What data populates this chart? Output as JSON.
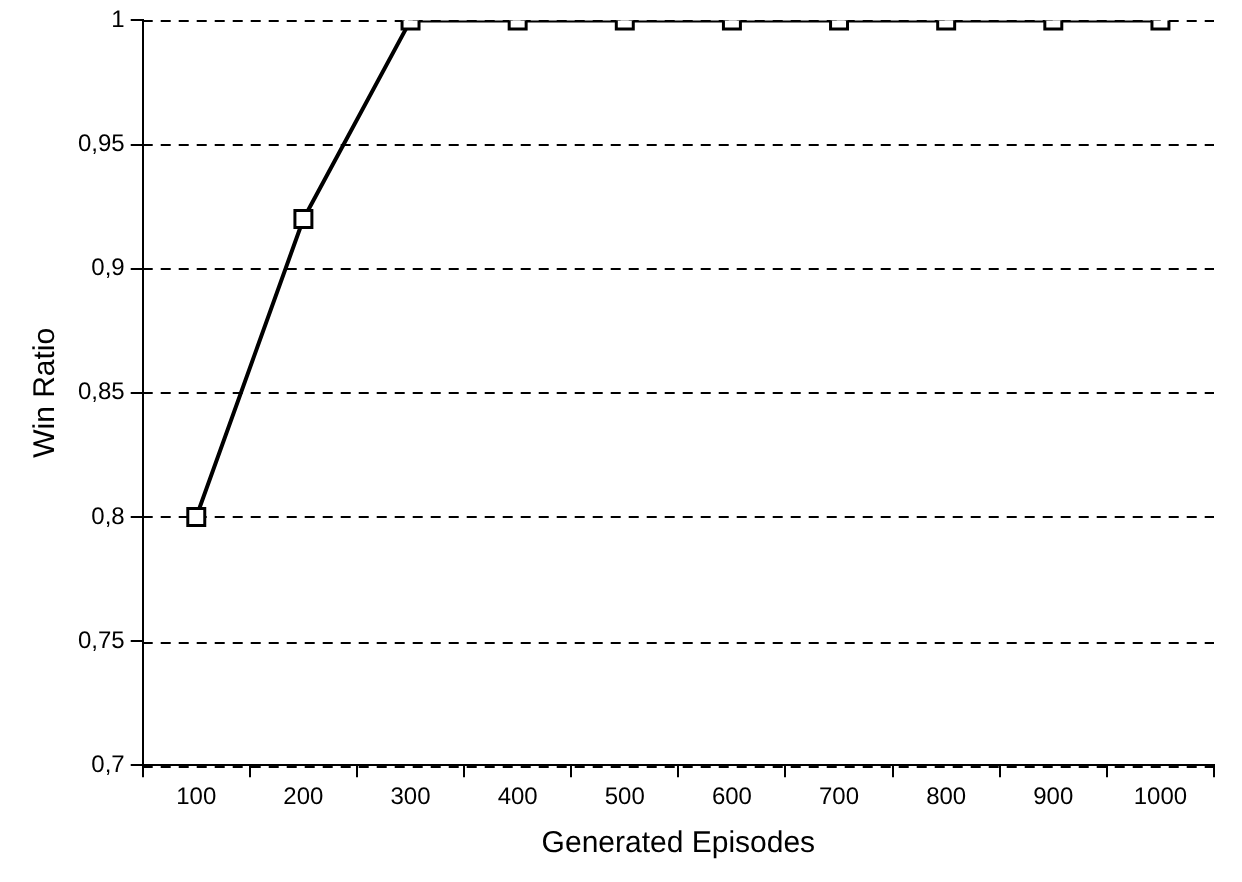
{
  "chart_data": {
    "type": "line",
    "xlabel": "Generated Episodes",
    "ylabel": "Win Ratio",
    "categories": [
      "100",
      "200",
      "300",
      "400",
      "500",
      "600",
      "700",
      "800",
      "900",
      "1000"
    ],
    "series": [
      {
        "color": "#000000",
        "values": [
          0.8,
          0.92,
          1,
          1,
          1,
          1,
          1,
          1,
          1,
          1
        ]
      }
    ],
    "ylim": [
      0.7,
      1
    ],
    "yticks": [
      {
        "value": 0.7,
        "label": "0,7"
      },
      {
        "value": 0.75,
        "label": "0,75"
      },
      {
        "value": 0.8,
        "label": "0,8"
      },
      {
        "value": 0.85,
        "label": "0,85"
      },
      {
        "value": 0.9,
        "label": "0,9"
      },
      {
        "value": 0.95,
        "label": "0,95"
      },
      1
    ],
    "grid": "y",
    "marker": "square",
    "line_style": "solid"
  }
}
